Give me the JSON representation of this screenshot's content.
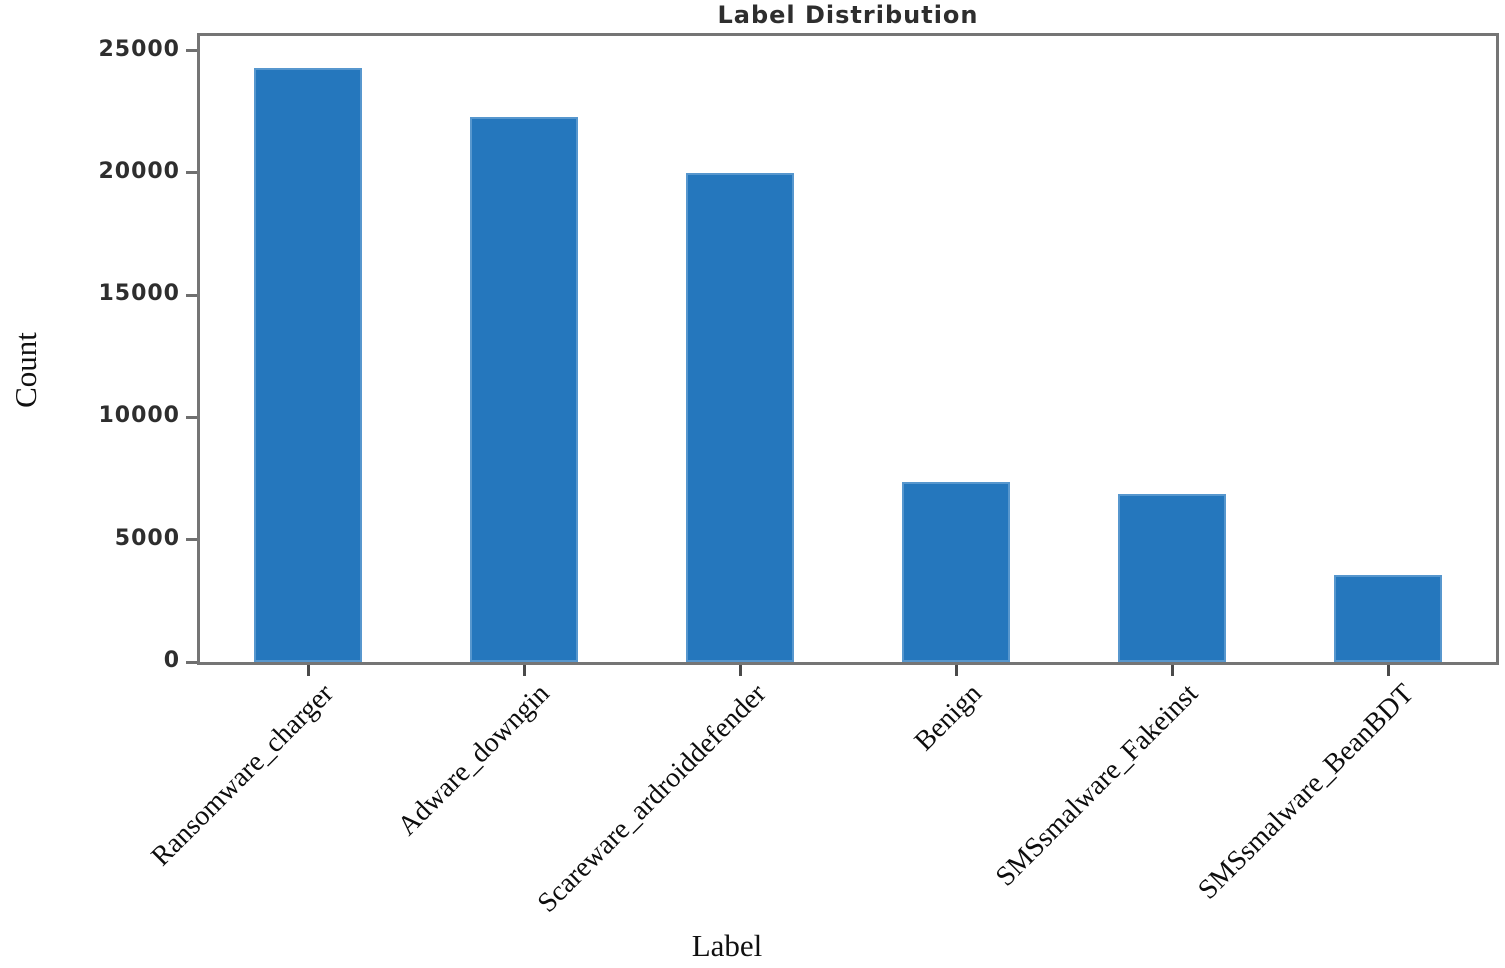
{
  "chart_data": {
    "type": "bar",
    "title": "Label Distribution",
    "xlabel": "Label",
    "ylabel": "Count",
    "categories": [
      "Ransomware_charger",
      "Adware_downgin",
      "Scareware_ardroiddefender",
      "Benign",
      "SMSsmalware_Fakeinst",
      "SMSsmalware_BeanBDT"
    ],
    "values": [
      24300,
      22300,
      20000,
      7350,
      6850,
      3550
    ],
    "yticks": [
      0,
      5000,
      10000,
      15000,
      20000,
      25000
    ],
    "ylim": [
      0,
      25600
    ],
    "bar_relative_width": 0.5,
    "grid": false,
    "legend": null,
    "bar_color": "#2577bd",
    "bar_edge_color": "#79aed9",
    "spine_color": "#757575",
    "text_color": "#1f1f1f"
  }
}
